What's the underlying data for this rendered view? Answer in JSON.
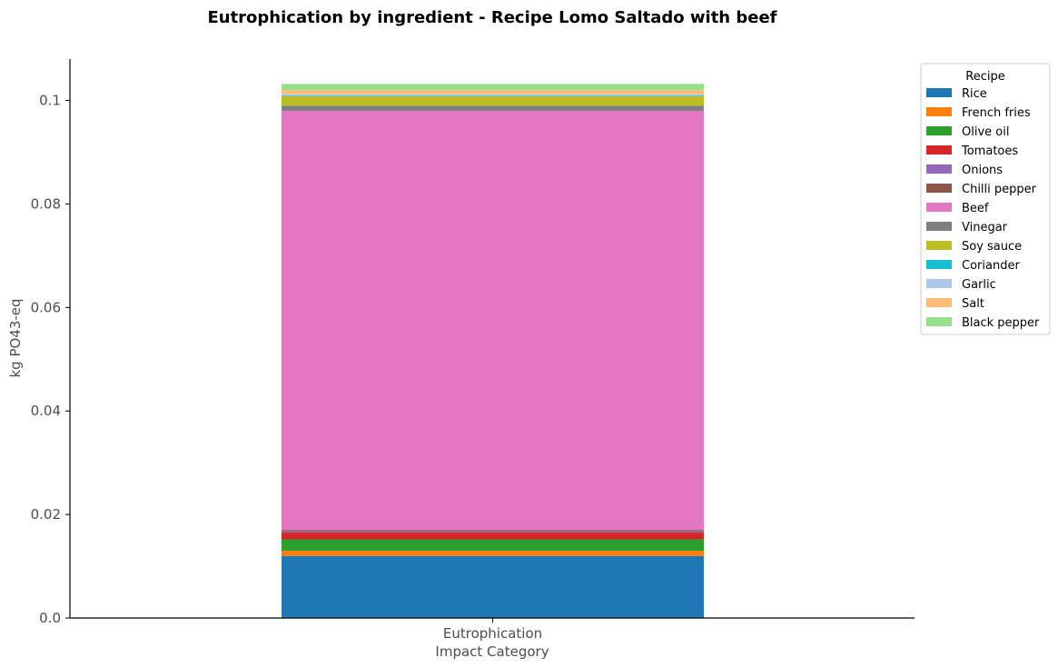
{
  "chart_data": {
    "type": "bar",
    "stacked": true,
    "title": "Eutrophication by ingredient - Recipe Lomo Saltado with beef",
    "xlabel": "Impact Category",
    "ylabel": "kg PO43-eq",
    "categories": [
      "Eutrophication"
    ],
    "ylim": [
      0,
      0.108
    ],
    "yticks": [
      0.0,
      0.02,
      0.04,
      0.06,
      0.08,
      0.1
    ],
    "ytick_labels": [
      "0.0",
      "0.02",
      "0.04",
      "0.06",
      "0.08",
      "0.1"
    ],
    "grid": false,
    "legend_title": "Recipe",
    "legend_position": "outside top-right",
    "series": [
      {
        "name": "Rice",
        "values": [
          0.012
        ],
        "color": "#1f77b4"
      },
      {
        "name": "French fries",
        "values": [
          0.001
        ],
        "color": "#ff7f0e"
      },
      {
        "name": "Olive oil",
        "values": [
          0.0022
        ],
        "color": "#2ca02c"
      },
      {
        "name": "Tomatoes",
        "values": [
          0.0013
        ],
        "color": "#d62728"
      },
      {
        "name": "Onions",
        "values": [
          0.0002
        ],
        "color": "#9467bd"
      },
      {
        "name": "Chilli pepper",
        "values": [
          0.0003
        ],
        "color": "#8c564b"
      },
      {
        "name": "Beef",
        "values": [
          0.081
        ],
        "color": "#e377c2"
      },
      {
        "name": "Vinegar",
        "values": [
          0.001
        ],
        "color": "#7f7f7f"
      },
      {
        "name": "Soy sauce",
        "values": [
          0.0018
        ],
        "color": "#bcbd22"
      },
      {
        "name": "Coriander",
        "values": [
          0.0001
        ],
        "color": "#17becf"
      },
      {
        "name": "Garlic",
        "values": [
          0.0003
        ],
        "color": "#aec7e8"
      },
      {
        "name": "Salt",
        "values": [
          0.0008
        ],
        "color": "#ffbb78"
      },
      {
        "name": "Black pepper",
        "values": [
          0.0012
        ],
        "color": "#98df8a"
      }
    ]
  }
}
